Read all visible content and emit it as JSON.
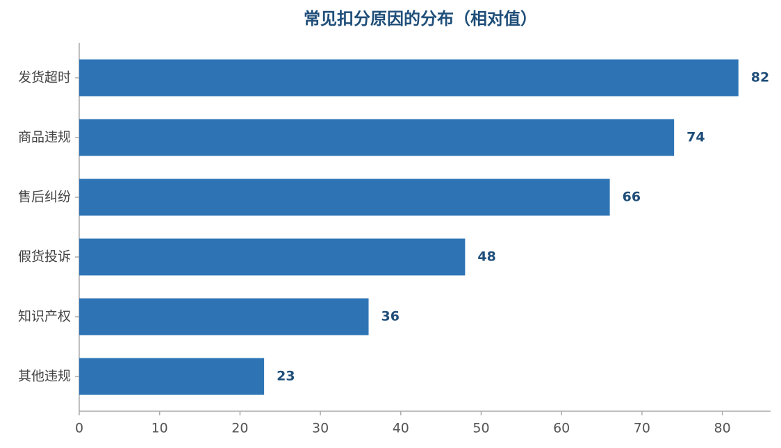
{
  "chart_data": {
    "type": "barh",
    "title": "常见扣分原因的分布（相对值）",
    "categories": [
      "发货超时",
      "商品违规",
      "售后纠纷",
      "假货投诉",
      "知识产权",
      "其他违规"
    ],
    "values": [
      82,
      74,
      66,
      48,
      36,
      23
    ],
    "color": "#2e74b5",
    "xlim": [
      0,
      86
    ],
    "xticks": [
      0,
      10,
      20,
      30,
      40,
      50,
      60,
      70,
      80
    ],
    "grid": false
  }
}
